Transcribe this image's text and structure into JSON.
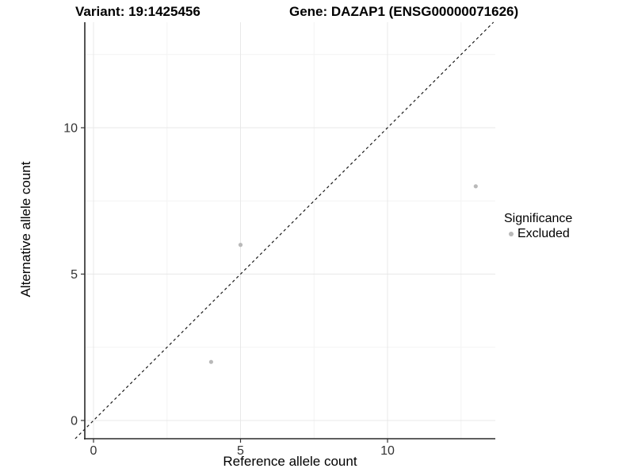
{
  "figure": {
    "title_left": "Variant: 19:1425456",
    "title_right": "Gene: DAZAP1 (ENSG00000071626)"
  },
  "axes": {
    "x": {
      "label": "Reference allele count",
      "tick_labels": [
        "0",
        "5",
        "10"
      ]
    },
    "y": {
      "label": "Alternative allele count",
      "tick_labels": [
        "0",
        "5",
        "10"
      ]
    }
  },
  "legend": {
    "title": "Significance",
    "items": [
      {
        "label": "Excluded",
        "color": "#b9b9b9"
      }
    ]
  },
  "chart_data": {
    "type": "scatter",
    "title_left": "Variant: 19:1425456",
    "title_right": "Gene: DAZAP1 (ENSG00000071626)",
    "xlabel": "Reference allele count",
    "ylabel": "Alternative allele count",
    "x_ticks": [
      0,
      5,
      10
    ],
    "y_ticks": [
      0,
      5,
      10
    ],
    "x_minor_ticks": [
      2.5,
      7.5,
      12.5
    ],
    "y_minor_ticks": [
      2.5,
      7.5,
      12.5
    ],
    "xlim": [
      -0.65,
      13.65
    ],
    "ylim": [
      -0.65,
      13.65
    ],
    "grid": "major-and-minor",
    "legend_position": "right",
    "legend_title": "Significance",
    "series": [
      {
        "name": "Excluded",
        "color": "#b9b9b9",
        "points": [
          {
            "x": 4,
            "y": 2
          },
          {
            "x": 5,
            "y": 6
          },
          {
            "x": 13,
            "y": 8
          }
        ]
      }
    ],
    "reference_line": {
      "kind": "identity y=x",
      "style": "dashed",
      "color": "#1a1a1a"
    }
  },
  "colors": {
    "background": "#ffffff",
    "point": "#b9b9b9",
    "grid_major": "#e8e8e8",
    "grid_minor": "#f4f4f4",
    "axis_line": "#2a2a2a",
    "tick_mark": "#333333",
    "tick_label": "#333333",
    "dashed_line": "#1a1a1a"
  }
}
